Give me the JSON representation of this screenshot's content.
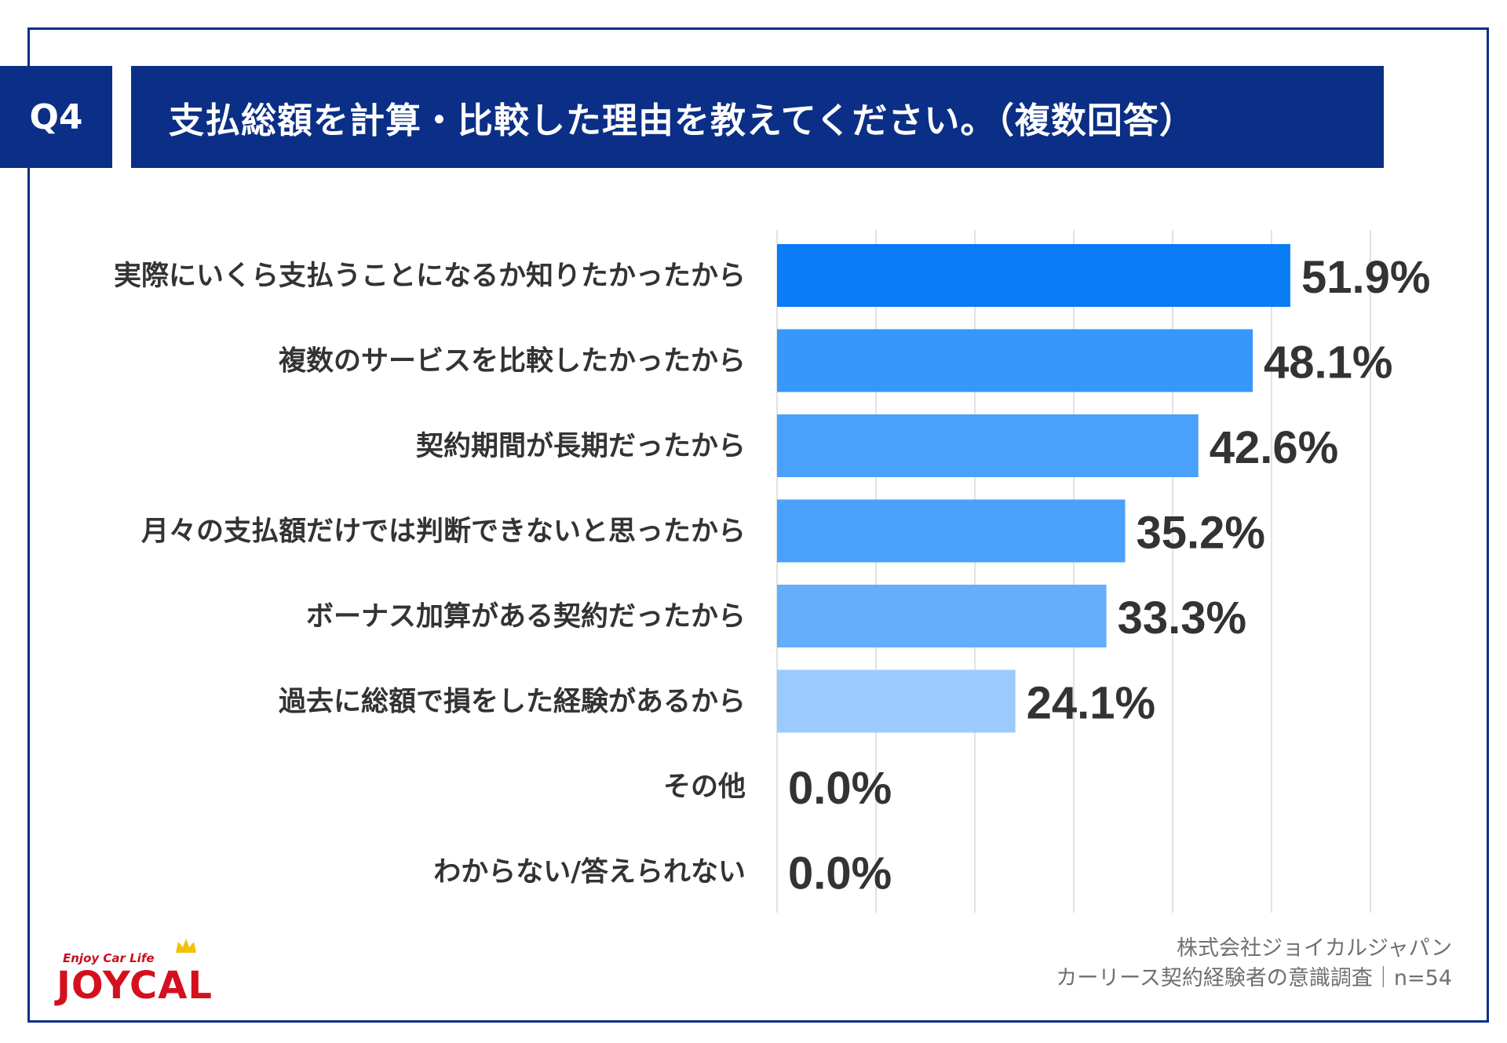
{
  "header": {
    "question_number": "Q4",
    "question_text": "支払総額を計算・比較した理由を教えてください。（複数回答）"
  },
  "chart_data": {
    "type": "bar",
    "orientation": "horizontal",
    "categories": [
      "実際にいくら支払うことになるか知りたかったから",
      "複数のサービスを比較したかったから",
      "契約期間が長期だったから",
      "月々の支払額だけでは判断できないと思ったから",
      "ボーナス加算がある契約だったから",
      "過去に総額で損をした経験があるから",
      "その他",
      "わからない/答えられない"
    ],
    "values": [
      51.9,
      48.1,
      42.6,
      35.2,
      33.3,
      24.1,
      0.0,
      0.0
    ],
    "value_labels": [
      "51.9%",
      "48.1%",
      "42.6%",
      "35.2%",
      "33.3%",
      "24.1%",
      "0.0%",
      "0.0%"
    ],
    "bar_colors": [
      "#0a7cf5",
      "#3797fb",
      "#4aa1fb",
      "#4aa1fb",
      "#64aefc",
      "#9bcafd",
      "#9bcafd",
      "#9bcafd"
    ],
    "xlim": [
      0,
      60
    ],
    "grid": true,
    "grid_step": 10
  },
  "footer": {
    "company": "株式会社ジョイカルジャパン",
    "survey": "カーリース契約経験者の意識調査｜n=54"
  },
  "logo": {
    "tagline": "Enjoy Car Life",
    "wordmark": "JOYCAL"
  },
  "colors": {
    "navy": "#0b2f86",
    "text": "#333333",
    "brand_red": "#d4101f"
  }
}
